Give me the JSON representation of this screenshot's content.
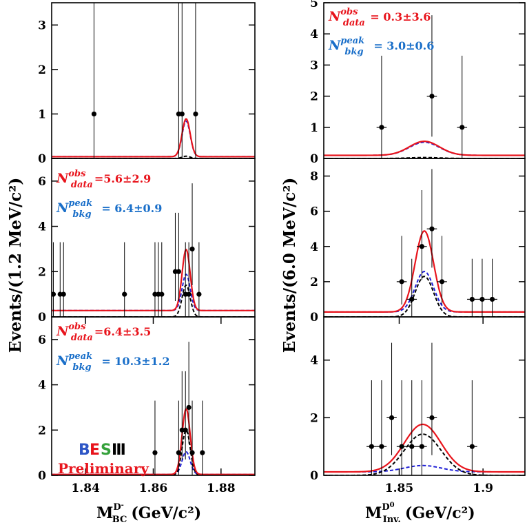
{
  "labels": {
    "y_left": "Events/(1.2 MeV/c²)",
    "y_right": "Events/(6.0 MeV/c²)",
    "x_left_main": "M",
    "x_left_sup": "D",
    "x_left_supsup": "-",
    "x_left_sub": "BC",
    "x_left_unit": "(GeV/c²)",
    "x_right_main": "M",
    "x_right_sup": "D",
    "x_right_supsup": "0",
    "x_right_sub": "Inv.",
    "x_right_unit": "(GeV/c²)",
    "logo_b": "B",
    "logo_e": "E",
    "logo_s": "S",
    "logo_iii": "Ⅲ",
    "preliminary": "Preliminary"
  },
  "colors": {
    "data": "#000000",
    "total_fit": "#e8141c",
    "peak_bkg": "#1f1fd6",
    "signal": "#000000",
    "ann_obs": "#e8141c",
    "ann_peak": "#1a6fc9",
    "logo_b": "#2e56c6",
    "logo_e": "#e8141c",
    "logo_s": "#35a13b",
    "logo_iii": "#000000"
  },
  "chart_data": [
    {
      "type": "scatter",
      "panel": "left-top",
      "xlim": [
        1.83,
        1.89
      ],
      "ylim": [
        0,
        3.5
      ],
      "yticks": [
        0,
        1,
        2,
        3
      ],
      "xticks": [],
      "annotations": [],
      "points": [
        {
          "x": 1.8425,
          "y": 1,
          "lo": 1,
          "hi": 3.3
        },
        {
          "x": 1.8675,
          "y": 1,
          "lo": 1,
          "hi": 3.3
        },
        {
          "x": 1.8685,
          "y": 1,
          "lo": 1,
          "hi": 3.3
        },
        {
          "x": 1.8725,
          "y": 1,
          "lo": 1,
          "hi": 3.3
        }
      ],
      "curves": [
        {
          "role": "total_fit",
          "mean": 1.8697,
          "sigma": 0.0012,
          "amp": 0.85,
          "base": 0.04
        },
        {
          "role": "peak_bkg",
          "mean": 1.8697,
          "sigma": 0.0012,
          "amp": 0.8,
          "base": 0.04
        },
        {
          "role": "signal",
          "mean": 1.8697,
          "sigma": 0.0012,
          "amp": 0.05,
          "base": 0.0
        }
      ]
    },
    {
      "type": "scatter",
      "panel": "left-mid",
      "xlim": [
        1.83,
        1.89
      ],
      "ylim": [
        0,
        7
      ],
      "yticks": [
        0,
        2,
        4,
        6
      ],
      "xticks": [],
      "annotations": [
        {
          "role": "obs",
          "label": "N",
          "sup": "obs",
          "sub": "data",
          "value": "=5.6±2.9"
        },
        {
          "role": "peak",
          "label": "N",
          "sup": "peak",
          "sub": "bkg",
          "value": " = 6.4±0.9"
        }
      ],
      "points": [
        {
          "x": 1.8305,
          "y": 1,
          "lo": 1,
          "hi": 2.3
        },
        {
          "x": 1.8325,
          "y": 1,
          "lo": 1,
          "hi": 2.3
        },
        {
          "x": 1.8335,
          "y": 1,
          "lo": 1,
          "hi": 2.3
        },
        {
          "x": 1.8515,
          "y": 1,
          "lo": 1,
          "hi": 2.3
        },
        {
          "x": 1.8605,
          "y": 1,
          "lo": 1,
          "hi": 2.3
        },
        {
          "x": 1.8615,
          "y": 1,
          "lo": 1,
          "hi": 2.3
        },
        {
          "x": 1.8625,
          "y": 1,
          "lo": 1,
          "hi": 2.3
        },
        {
          "x": 1.8665,
          "y": 2,
          "lo": 1.3,
          "hi": 2.6
        },
        {
          "x": 1.8675,
          "y": 2,
          "lo": 1.3,
          "hi": 2.6
        },
        {
          "x": 1.8695,
          "y": 1,
          "lo": 1,
          "hi": 2.3
        },
        {
          "x": 1.8705,
          "y": 1,
          "lo": 1,
          "hi": 2.3
        },
        {
          "x": 1.8715,
          "y": 3,
          "lo": 1.6,
          "hi": 2.9
        },
        {
          "x": 1.8735,
          "y": 1,
          "lo": 1,
          "hi": 2.3
        }
      ],
      "curves": [
        {
          "role": "total_fit",
          "mean": 1.8697,
          "sigma": 0.0012,
          "amp": 2.7,
          "base": 0.28
        },
        {
          "role": "peak_bkg",
          "mean": 1.8697,
          "sigma": 0.0012,
          "amp": 1.6,
          "base": 0.28
        },
        {
          "role": "signal",
          "mean": 1.8697,
          "sigma": 0.0012,
          "amp": 1.4,
          "base": 0.0
        }
      ]
    },
    {
      "type": "scatter",
      "panel": "left-bot",
      "xlim": [
        1.83,
        1.89
      ],
      "ylim": [
        0,
        7
      ],
      "yticks": [
        0,
        2,
        4,
        6
      ],
      "xticks": [
        1.84,
        1.86,
        1.88
      ],
      "annotations": [
        {
          "role": "obs",
          "label": "N",
          "sup": "obs",
          "sub": "data",
          "value": "=6.4±3.5"
        },
        {
          "role": "peak",
          "label": "N",
          "sup": "peak",
          "sub": "bkg",
          "value": " = 10.3±1.2"
        }
      ],
      "points": [
        {
          "x": 1.8605,
          "y": 1,
          "lo": 1,
          "hi": 2.3
        },
        {
          "x": 1.8675,
          "y": 1,
          "lo": 1,
          "hi": 2.3
        },
        {
          "x": 1.8685,
          "y": 2,
          "lo": 1.3,
          "hi": 2.6
        },
        {
          "x": 1.8695,
          "y": 2,
          "lo": 1.3,
          "hi": 2.6
        },
        {
          "x": 1.8705,
          "y": 3,
          "lo": 1.6,
          "hi": 2.9
        },
        {
          "x": 1.8715,
          "y": 1,
          "lo": 1,
          "hi": 2.3
        },
        {
          "x": 1.8745,
          "y": 1,
          "lo": 1,
          "hi": 2.3
        }
      ],
      "curves": [
        {
          "role": "total_fit",
          "mean": 1.8697,
          "sigma": 0.0012,
          "amp": 2.9,
          "base": 0.04
        },
        {
          "role": "peak_bkg",
          "mean": 1.8697,
          "sigma": 0.0012,
          "amp": 1.0,
          "base": 0.04
        },
        {
          "role": "signal",
          "mean": 1.8697,
          "sigma": 0.0012,
          "amp": 2.0,
          "base": 0.0
        }
      ]
    },
    {
      "type": "scatter",
      "panel": "right-top",
      "xlim": [
        1.805,
        1.925
      ],
      "ylim": [
        0,
        5
      ],
      "yticks": [
        0,
        1,
        2,
        3,
        4,
        5
      ],
      "xticks": [],
      "annotations": [
        {
          "role": "obs",
          "label": "N",
          "sup": "obs",
          "sub": "data",
          "value": " = 0.3±3.6"
        },
        {
          "role": "peak",
          "label": "N",
          "sup": "peak",
          "sub": "bkg",
          "value": " = 3.0±0.6"
        }
      ],
      "points": [
        {
          "x": 1.8395,
          "y": 1,
          "lo": 1,
          "hi": 2.3,
          "xerr": 0.003
        },
        {
          "x": 1.8695,
          "y": 2,
          "lo": 1.3,
          "hi": 2.6,
          "xerr": 0.003
        },
        {
          "x": 1.8875,
          "y": 1,
          "lo": 1,
          "hi": 2.3,
          "xerr": 0.003
        }
      ],
      "curves": [
        {
          "role": "total_fit",
          "mean": 1.865,
          "sigma": 0.009,
          "amp": 0.45,
          "base": 0.1
        },
        {
          "role": "peak_bkg",
          "mean": 1.865,
          "sigma": 0.009,
          "amp": 0.42,
          "base": 0.1
        },
        {
          "role": "signal",
          "mean": 1.865,
          "sigma": 0.009,
          "amp": 0.03,
          "base": 0.0
        }
      ]
    },
    {
      "type": "scatter",
      "panel": "right-mid",
      "xlim": [
        1.805,
        1.925
      ],
      "ylim": [
        0,
        9
      ],
      "yticks": [
        0,
        2,
        4,
        6,
        8
      ],
      "xticks": [],
      "annotations": [],
      "points": [
        {
          "x": 1.8515,
          "y": 2,
          "lo": 1.3,
          "hi": 2.6,
          "xerr": 0.003
        },
        {
          "x": 1.8575,
          "y": 1,
          "lo": 1,
          "hi": 2.3,
          "xerr": 0.003
        },
        {
          "x": 1.8635,
          "y": 4,
          "lo": 1.9,
          "hi": 3.2,
          "xerr": 0.003
        },
        {
          "x": 1.8695,
          "y": 5,
          "lo": 2.2,
          "hi": 3.4,
          "xerr": 0.003
        },
        {
          "x": 1.8755,
          "y": 2,
          "lo": 1.3,
          "hi": 2.6,
          "xerr": 0.003
        },
        {
          "x": 1.8935,
          "y": 1,
          "lo": 1,
          "hi": 2.3,
          "xerr": 0.003
        },
        {
          "x": 1.8995,
          "y": 1,
          "lo": 1,
          "hi": 2.3,
          "xerr": 0.003
        },
        {
          "x": 1.9055,
          "y": 1,
          "lo": 1,
          "hi": 2.3,
          "xerr": 0.003
        }
      ],
      "curves": [
        {
          "role": "total_fit",
          "mean": 1.865,
          "sigma": 0.0055,
          "amp": 4.6,
          "base": 0.28
        },
        {
          "role": "peak_bkg",
          "mean": 1.865,
          "sigma": 0.0055,
          "amp": 2.3,
          "base": 0.28
        },
        {
          "role": "signal",
          "mean": 1.865,
          "sigma": 0.0055,
          "amp": 2.3,
          "base": 0.0
        }
      ]
    },
    {
      "type": "scatter",
      "panel": "right-bot",
      "xlim": [
        1.805,
        1.925
      ],
      "ylim": [
        0,
        5.5
      ],
      "yticks": [
        0,
        2,
        4
      ],
      "xticks": [
        1.85,
        1.9
      ],
      "annotations": [],
      "points": [
        {
          "x": 1.8335,
          "y": 1,
          "lo": 1,
          "hi": 2.3,
          "xerr": 0.003
        },
        {
          "x": 1.8395,
          "y": 1,
          "lo": 1,
          "hi": 2.3,
          "xerr": 0.003
        },
        {
          "x": 1.8455,
          "y": 2,
          "lo": 1.3,
          "hi": 2.6,
          "xerr": 0.003
        },
        {
          "x": 1.8515,
          "y": 1,
          "lo": 1,
          "hi": 2.3,
          "xerr": 0.003
        },
        {
          "x": 1.8575,
          "y": 1,
          "lo": 1,
          "hi": 2.3,
          "xerr": 0.003
        },
        {
          "x": 1.8635,
          "y": 1,
          "lo": 1,
          "hi": 2.3,
          "xerr": 0.003
        },
        {
          "x": 1.8695,
          "y": 2,
          "lo": 1.3,
          "hi": 2.6,
          "xerr": 0.003
        },
        {
          "x": 1.8935,
          "y": 1,
          "lo": 1,
          "hi": 2.3,
          "xerr": 0.003
        }
      ],
      "curves": [
        {
          "role": "total_fit",
          "mean": 1.864,
          "sigma": 0.011,
          "amp": 1.65,
          "base": 0.12
        },
        {
          "role": "peak_bkg",
          "mean": 1.864,
          "sigma": 0.011,
          "amp": 0.22,
          "base": 0.12
        },
        {
          "role": "signal",
          "mean": 1.864,
          "sigma": 0.011,
          "amp": 1.43,
          "base": 0.0
        }
      ]
    }
  ]
}
